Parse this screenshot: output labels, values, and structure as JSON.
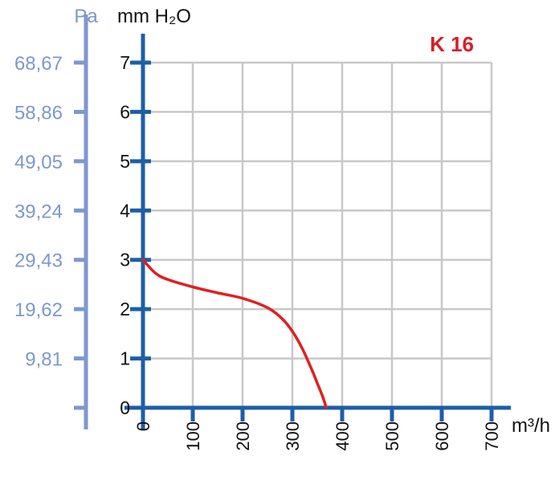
{
  "chart_data": {
    "type": "line",
    "title": "K 16",
    "x_unit": "m³/h",
    "y_unit": "mm H₂O",
    "y2_unit": "Pa",
    "xlim": [
      0,
      700
    ],
    "ylim": [
      0,
      7
    ],
    "x_ticks": [
      "0",
      "100",
      "200",
      "300",
      "400",
      "500",
      "600",
      "700"
    ],
    "y_ticks": [
      "0",
      "1",
      "2",
      "3",
      "4",
      "5",
      "6",
      "7"
    ],
    "y2_ticks": [
      "9,81",
      "19,62",
      "29,43",
      "39,24",
      "49,05",
      "58,86",
      "68,67"
    ],
    "grid": true,
    "series": [
      {
        "x": [
          0,
          25,
          50,
          100,
          150,
          200,
          250,
          280,
          300,
          320,
          340,
          350,
          360,
          365,
          368
        ],
        "y": [
          3.0,
          2.73,
          2.6,
          2.45,
          2.33,
          2.22,
          2.03,
          1.8,
          1.55,
          1.2,
          0.75,
          0.5,
          0.25,
          0.1,
          0.0
        ]
      }
    ],
    "colors": {
      "curve": "#e02020",
      "title": "#d81e2a",
      "axis": "#1d5ea8",
      "pa_axis": "#7d98ce",
      "grid": "#c8c8c8"
    }
  }
}
